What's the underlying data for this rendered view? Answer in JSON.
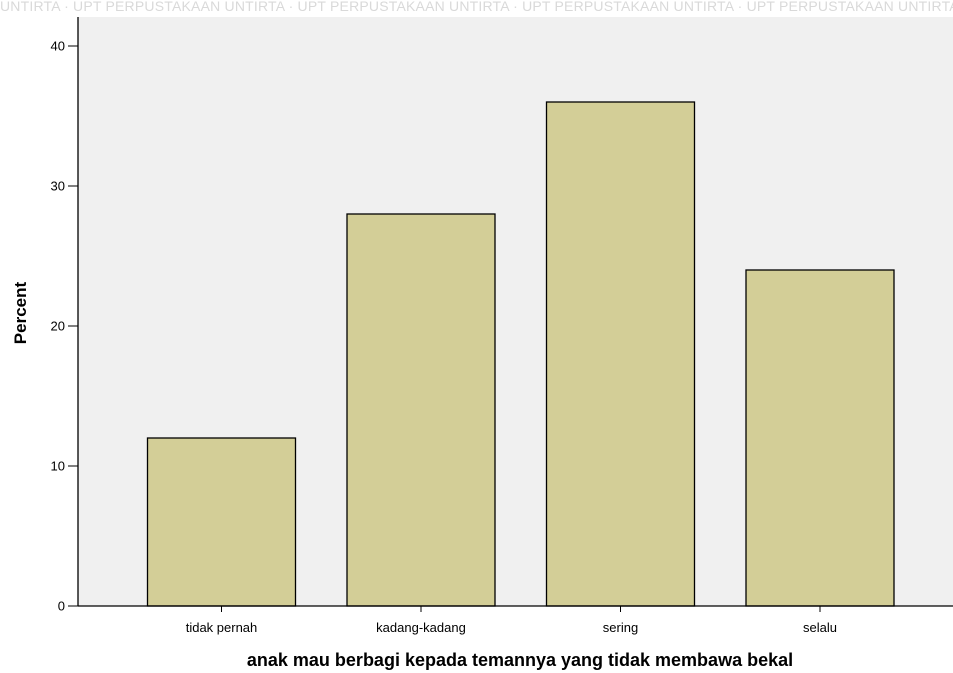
{
  "watermark": {
    "text": "UNTIRTA · UPT PERPUSTAKAAN UNTIRTA · UPT PERPUSTAKAAN UNTIRTA · UPT PERPUSTAKAAN UNTIRTA · UPT PERPUSTAKAAN UNTIRTA"
  },
  "chart_data": {
    "type": "bar",
    "categories": [
      "tidak pernah",
      "kadang-kadang",
      "sering",
      "selalu"
    ],
    "values": [
      12,
      28,
      36,
      24
    ],
    "xlabel": "anak mau berbagi kepada temannya yang tidak membawa bekal",
    "ylabel": "Percent",
    "ylim": [
      0,
      40
    ],
    "yticks": [
      0,
      10,
      20,
      30,
      40
    ],
    "grid": false,
    "colors": {
      "plot_background": "#f0f0f0",
      "bar_fill": "#d3ce97",
      "bar_stroke": "#000000",
      "axis": "#000000"
    }
  }
}
